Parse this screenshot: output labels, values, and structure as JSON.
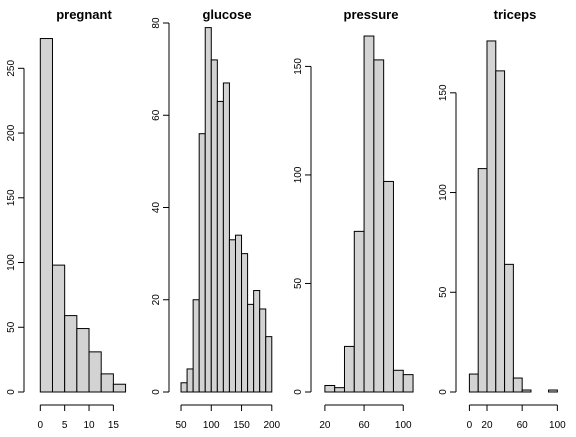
{
  "chart_data": [
    {
      "type": "bar",
      "title": "pregnant",
      "xlabel": "",
      "ylabel": "",
      "bin_edges": [
        0,
        2.5,
        5,
        7.5,
        10,
        12.5,
        15,
        17.5
      ],
      "values": [
        273,
        98,
        59,
        49,
        31,
        14,
        6,
        1
      ],
      "xlim": [
        -1.5,
        18
      ],
      "ylim": [
        0,
        285
      ],
      "x_ticks": [
        0,
        5,
        10,
        15
      ],
      "y_ticks": [
        0,
        50,
        100,
        150,
        200,
        250
      ]
    },
    {
      "type": "bar",
      "title": "glucose",
      "xlabel": "",
      "ylabel": "",
      "bin_edges": [
        50,
        60,
        70,
        80,
        90,
        100,
        110,
        120,
        130,
        140,
        150,
        160,
        170,
        180,
        190,
        200
      ],
      "values": [
        2,
        5,
        20,
        56,
        79,
        72,
        63,
        67,
        33,
        34,
        30,
        19,
        22,
        18,
        12
      ],
      "xlim": [
        45,
        202
      ],
      "ylim": [
        0,
        80
      ],
      "x_ticks": [
        50,
        100,
        150,
        200
      ],
      "y_ticks": [
        0,
        20,
        40,
        60,
        80
      ]
    },
    {
      "type": "bar",
      "title": "pressure",
      "xlabel": "",
      "ylabel": "",
      "bin_edges": [
        20,
        30,
        40,
        50,
        60,
        70,
        80,
        90,
        100,
        110
      ],
      "values": [
        3,
        2,
        21,
        74,
        164,
        153,
        97,
        10,
        8
      ],
      "xlim": [
        15,
        112
      ],
      "ylim": [
        0,
        170
      ],
      "x_ticks": [
        20,
        60,
        100
      ],
      "y_ticks": [
        0,
        50,
        100,
        150
      ]
    },
    {
      "type": "bar",
      "title": "triceps",
      "xlabel": "",
      "ylabel": "",
      "bin_edges": [
        0,
        10,
        20,
        30,
        40,
        50,
        60,
        70,
        80,
        90,
        100
      ],
      "values": [
        9,
        112,
        176,
        161,
        64,
        7,
        1,
        0,
        0,
        1
      ],
      "xlim": [
        -5,
        103
      ],
      "ylim": [
        0,
        185
      ],
      "x_ticks": [
        0,
        20,
        60,
        100
      ],
      "y_ticks": [
        0,
        50,
        100,
        150
      ]
    }
  ]
}
